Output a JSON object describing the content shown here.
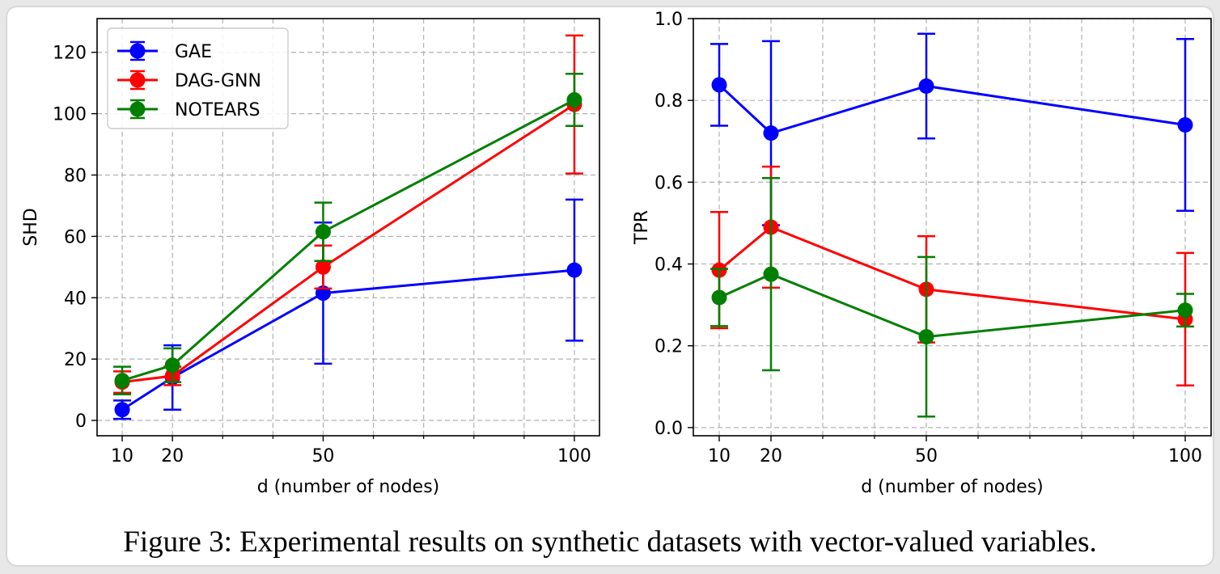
{
  "caption": "Figure 3: Experimental results on synthetic datasets with vector-valued variables.",
  "chart_data": [
    {
      "type": "line",
      "title": "",
      "xlabel": "d (number of nodes)",
      "ylabel": "SHD",
      "x": [
        10,
        20,
        50,
        100
      ],
      "x_ticks": [
        10,
        20,
        50,
        100
      ],
      "x_minor_ticks": [
        30,
        40,
        60,
        70,
        80,
        90
      ],
      "xlim": [
        5,
        105
      ],
      "ylim": [
        -5,
        131
      ],
      "y_ticks": [
        0,
        20,
        40,
        60,
        80,
        100,
        120
      ],
      "grid": true,
      "legend": "top-left",
      "series": [
        {
          "name": "GAE",
          "color": "#0000ff",
          "values": [
            3.5,
            14,
            41.5,
            49
          ],
          "errors": [
            3.0,
            10.5,
            23,
            23
          ]
        },
        {
          "name": "DAG-GNN",
          "color": "#ff0000",
          "values": [
            12.5,
            14.5,
            50,
            103
          ],
          "errors": [
            3.5,
            3.0,
            7,
            22.5
          ]
        },
        {
          "name": "NOTEARS",
          "color": "#007f00",
          "values": [
            13,
            18,
            61.5,
            104.5
          ],
          "errors": [
            4.5,
            5.5,
            9.5,
            8.5
          ]
        }
      ]
    },
    {
      "type": "line",
      "title": "",
      "xlabel": "d (number of nodes)",
      "ylabel": "TPR",
      "x": [
        10,
        20,
        50,
        100
      ],
      "x_ticks": [
        10,
        20,
        50,
        100
      ],
      "x_minor_ticks": [
        30,
        40,
        60,
        70,
        80,
        90
      ],
      "xlim": [
        5,
        105
      ],
      "ylim": [
        -0.02,
        1.0
      ],
      "y_ticks": [
        0.0,
        0.2,
        0.4,
        0.6,
        0.8,
        1.0
      ],
      "grid": true,
      "legend": "none",
      "series": [
        {
          "name": "GAE",
          "color": "#0000ff",
          "values": [
            0.838,
            0.72,
            0.835,
            0.74
          ],
          "errors": [
            0.1,
            0.225,
            0.128,
            0.21
          ]
        },
        {
          "name": "DAG-GNN",
          "color": "#ff0000",
          "values": [
            0.385,
            0.49,
            0.338,
            0.265
          ],
          "errors": [
            0.142,
            0.148,
            0.13,
            0.162
          ]
        },
        {
          "name": "NOTEARS",
          "color": "#007f00",
          "values": [
            0.318,
            0.375,
            0.222,
            0.287
          ],
          "errors": [
            0.07,
            0.235,
            0.195,
            0.04
          ]
        }
      ]
    }
  ]
}
